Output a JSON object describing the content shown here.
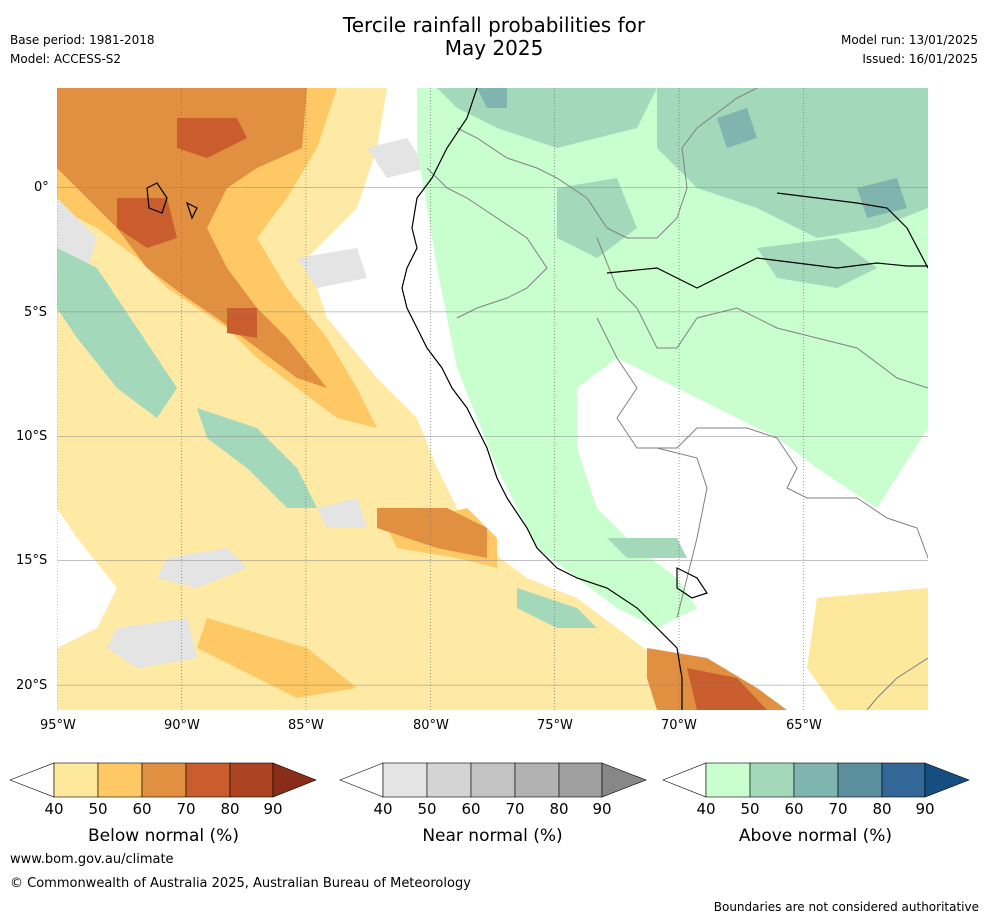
{
  "header": {
    "title_line1": "Tercile rainfall probabilities for",
    "title_line2": "May 2025",
    "base_period": "Base period: 1981-2018",
    "model": "Model: ACCESS-S2",
    "model_run": "Model run: 13/01/2025",
    "issued": "Issued: 16/01/2025"
  },
  "map": {
    "lon_range": [
      -95,
      -60
    ],
    "lat_range": [
      -21,
      4
    ],
    "lon_ticks": [
      "95°W",
      "90°W",
      "85°W",
      "80°W",
      "75°W",
      "70°W",
      "65°W"
    ],
    "lat_ticks": [
      "0°",
      "5°S",
      "10°S",
      "15°S",
      "20°S"
    ],
    "gridlines": true
  },
  "colorbars": [
    {
      "label": "Below normal (%)",
      "ticks": [
        "40",
        "50",
        "60",
        "70",
        "80",
        "90"
      ],
      "colors": [
        "#fee89b",
        "#fec965",
        "#e09040",
        "#c95d2e",
        "#ac4422",
        "#8a2d18"
      ]
    },
    {
      "label": "Near normal (%)",
      "ticks": [
        "40",
        "50",
        "60",
        "70",
        "80",
        "90"
      ],
      "colors": [
        "#e4e4e4",
        "#d4d4d4",
        "#c3c3c3",
        "#b2b2b2",
        "#a0a0a0",
        "#878787"
      ]
    },
    {
      "label": "Above normal (%)",
      "ticks": [
        "40",
        "50",
        "60",
        "70",
        "80",
        "90"
      ],
      "colors": [
        "#c9ffcf",
        "#a3d8bb",
        "#7fb5ae",
        "#5b8f9e",
        "#326797",
        "#164e82"
      ]
    }
  ],
  "footer": {
    "website": "www.bom.gov.au/climate",
    "copyright": "© Commonwealth of Australia 2025, Australian Bureau of Meteorology",
    "disclaimer": "Boundaries are not considered authoritative"
  }
}
